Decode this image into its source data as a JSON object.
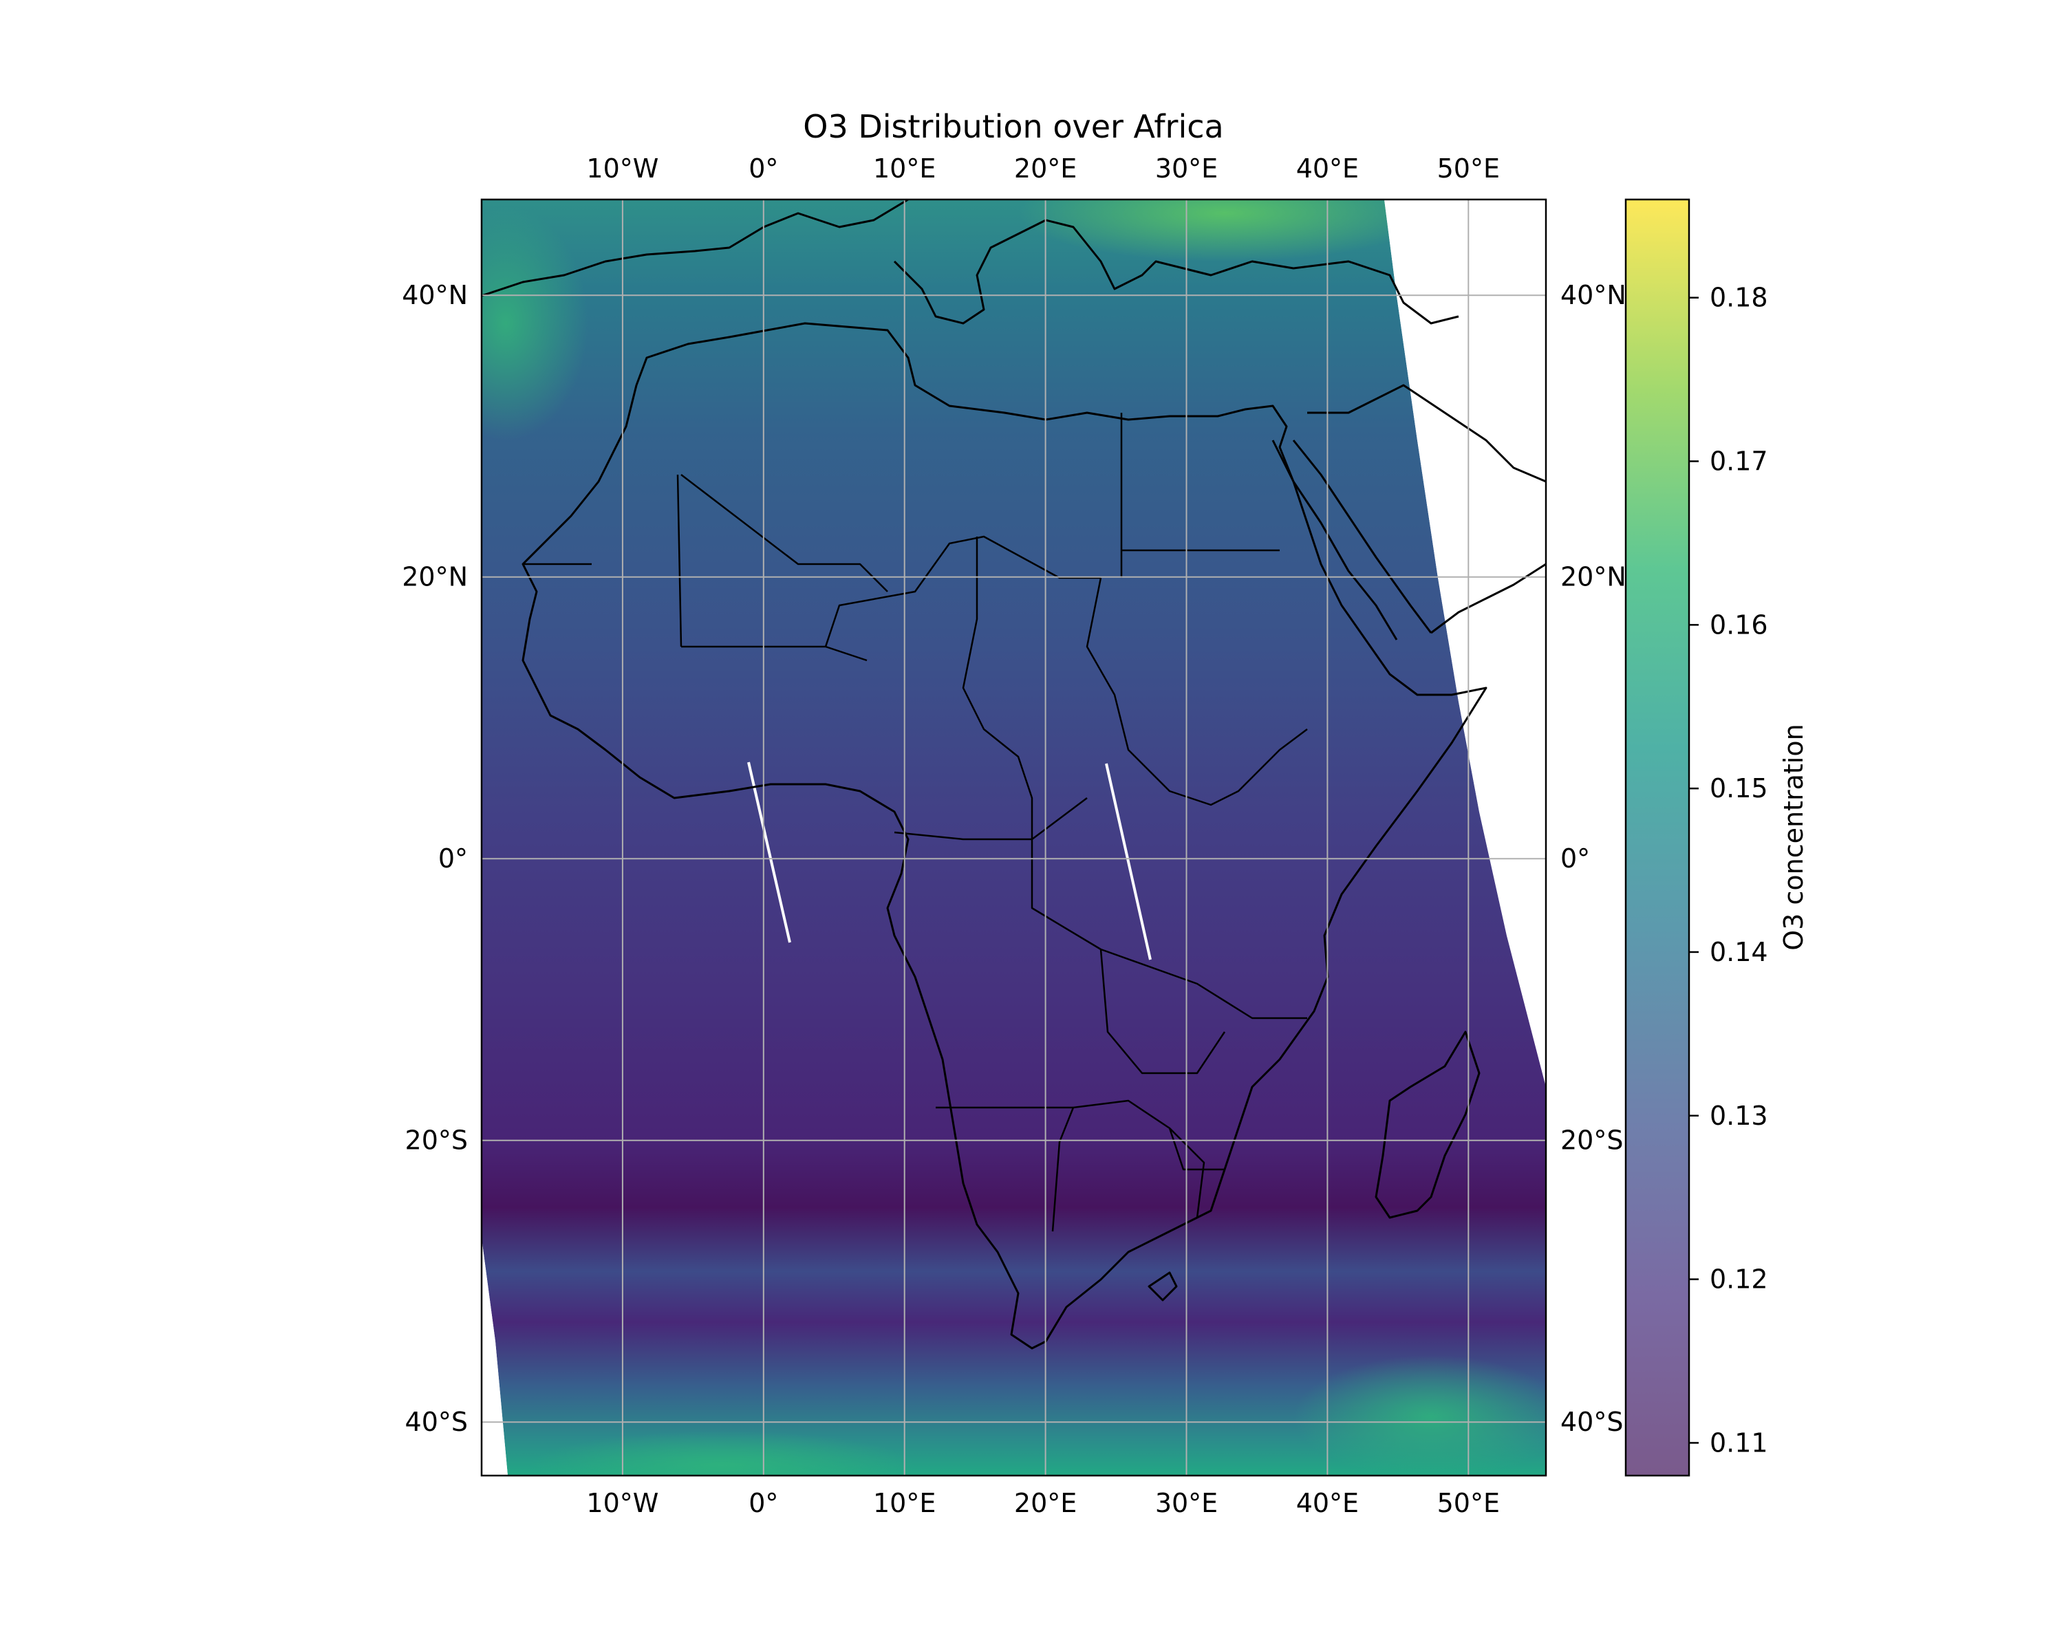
{
  "title": "O3 Distribution over Africa",
  "colorbar": {
    "label": "O3 concentration",
    "range": [
      0.108,
      0.186
    ],
    "ticks": [
      "0.11",
      "0.12",
      "0.13",
      "0.14",
      "0.15",
      "0.16",
      "0.17",
      "0.18"
    ]
  },
  "map": {
    "lon_range": [
      -20,
      55.5
    ],
    "lat_range": [
      -43.8,
      46.8
    ],
    "lon_ticks": [
      {
        "value": -10,
        "label": "10°W"
      },
      {
        "value": 0,
        "label": "0°"
      },
      {
        "value": 10,
        "label": "10°E"
      },
      {
        "value": 20,
        "label": "20°E"
      },
      {
        "value": 30,
        "label": "30°E"
      },
      {
        "value": 40,
        "label": "40°E"
      },
      {
        "value": 50,
        "label": "50°E"
      }
    ],
    "lat_ticks": [
      {
        "value": 40,
        "label": "40°N"
      },
      {
        "value": 20,
        "label": "20°N"
      },
      {
        "value": 0,
        "label": "0°"
      },
      {
        "value": -20,
        "label": "20°S"
      },
      {
        "value": -40,
        "label": "40°S"
      }
    ],
    "gridlines": true,
    "colormap": "viridis"
  },
  "colors": {
    "gridline": "#b0b0b0",
    "coastline": "#000000",
    "field_low": "#46145e",
    "field_high": "#fde725"
  },
  "chart_data": {
    "type": "heatmap",
    "title": "O3 Distribution over Africa",
    "variable": "O3 concentration",
    "value_range": [
      0.108,
      0.186
    ],
    "x_range_lon": [
      -20,
      55.5
    ],
    "y_range_lat": [
      -43.8,
      46.8
    ],
    "approximate_zonal_profile": [
      {
        "lat": 45,
        "value": 0.15
      },
      {
        "lat": 40,
        "value": 0.147
      },
      {
        "lat": 30,
        "value": 0.138
      },
      {
        "lat": 20,
        "value": 0.131
      },
      {
        "lat": 10,
        "value": 0.124
      },
      {
        "lat": 0,
        "value": 0.119
      },
      {
        "lat": -10,
        "value": 0.117
      },
      {
        "lat": -20,
        "value": 0.114
      },
      {
        "lat": -25,
        "value": 0.111
      },
      {
        "lat": -30,
        "value": 0.127
      },
      {
        "lat": -35,
        "value": 0.121
      },
      {
        "lat": -40,
        "value": 0.135
      },
      {
        "lat": -43,
        "value": 0.158
      }
    ],
    "regional_maxima": [
      {
        "region": "Eastern Europe / Balkans",
        "lon": 28,
        "lat": 46,
        "value": 0.168
      },
      {
        "region": "North Atlantic off Iberia",
        "lon": -19,
        "lat": 41,
        "value": 0.158
      },
      {
        "region": "South Atlantic",
        "lon": -5,
        "lat": -43,
        "value": 0.158
      },
      {
        "region": "Southern Indian Ocean",
        "lon": 48,
        "lat": -39,
        "value": 0.158
      }
    ]
  }
}
